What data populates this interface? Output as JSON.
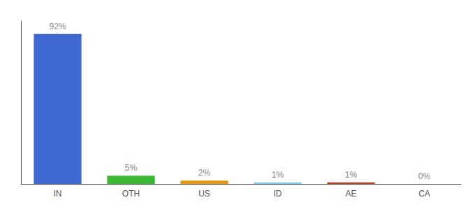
{
  "chart_data": {
    "type": "bar",
    "categories": [
      "IN",
      "OTH",
      "US",
      "ID",
      "AE",
      "CA"
    ],
    "values": [
      92,
      5,
      2,
      1,
      1,
      0
    ],
    "value_labels": [
      "92%",
      "5%",
      "2%",
      "1%",
      "1%",
      "0%"
    ],
    "colors": [
      "#4169d4",
      "#3ab832",
      "#e8980a",
      "#7ecfee",
      "#b84020",
      "#cccccc"
    ],
    "ylim": [
      0,
      100
    ],
    "grid": false,
    "data_labels": true,
    "tick_labels": "x"
  }
}
